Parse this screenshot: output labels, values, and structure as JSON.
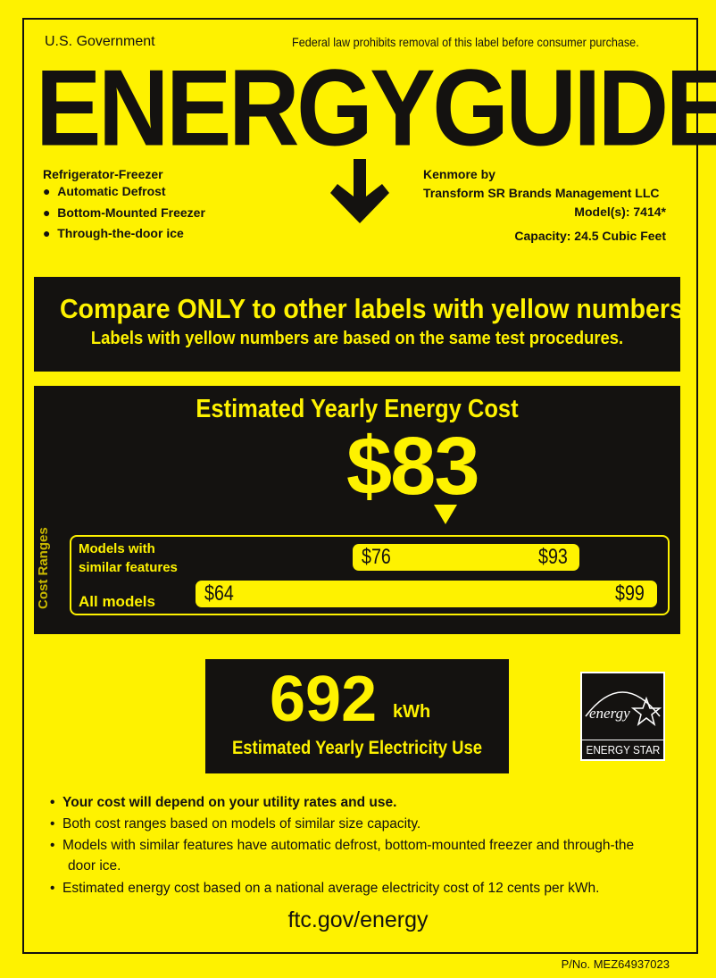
{
  "header": {
    "left": "U.S. Government",
    "right": "Federal law prohibits removal of this label before consumer purchase.",
    "title": "ENERGYGUIDE"
  },
  "product": {
    "type": "Refrigerator-Freezer",
    "features": [
      "Automatic Defrost",
      "Bottom-Mounted Freezer",
      "Through-the-door ice"
    ],
    "brand_line1": "Kenmore by",
    "brand_line2": "Transform SR Brands Management LLC",
    "model": "Model(s): 7414*",
    "capacity": "Capacity: 24.5 Cubic Feet"
  },
  "compare": {
    "line1": "Compare ONLY to other labels with yellow numbers.",
    "line2": "Labels with yellow numbers are based on the same test procedures."
  },
  "cost": {
    "heading": "Estimated Yearly Energy Cost",
    "value": "$83",
    "value_number": 83,
    "ranges_label": "Cost Ranges",
    "similar": {
      "label1": "Models with",
      "label2": "similar features",
      "min": "$76",
      "max": "$93"
    },
    "all": {
      "label": "All models",
      "min": "$64",
      "max": "$99"
    }
  },
  "electricity": {
    "value": "692",
    "unit": "kWh",
    "label": "Estimated Yearly Electricity Use"
  },
  "energy_star": {
    "script": "energy",
    "label": "ENERGY STAR"
  },
  "notes": [
    "Your cost will depend on your utility rates and use.",
    "Both cost ranges based on models of similar size capacity.",
    "Models with similar features have automatic defrost, bottom-mounted freezer and through-the",
    "door ice.",
    "Estimated energy cost based on a national average electricity cost of 12 cents per kWh."
  ],
  "footer": {
    "url": "ftc.gov/energy",
    "part_number": "P/No. MEZ64937023"
  },
  "colors": {
    "yellow": "#fef200",
    "dark": "#141210"
  }
}
